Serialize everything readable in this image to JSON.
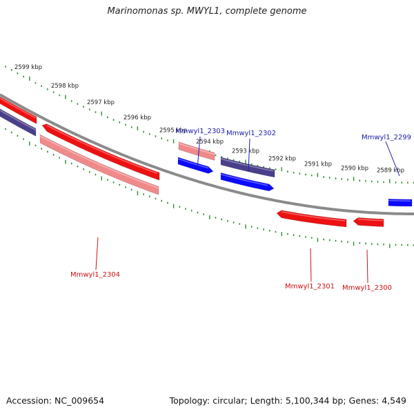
{
  "title": "Marinomonas sp. MWYL1, complete genome",
  "footer": {
    "accession": "Accession: NC_009654",
    "summary": "Topology: circular; Length: 5,100,344 bp; Genes: 4,549"
  },
  "colors": {
    "backbone": "#8a8a8a",
    "tick": "#2e8b2e",
    "forward_cds": "#0a0aff",
    "forward_gene": "#4a3f8a",
    "reverse_cds": "#ee1111",
    "reverse_gene": "#f08a8a",
    "forward_label": "#1a1aaa",
    "reverse_label": "#cc1111"
  },
  "ruler": {
    "labels": [
      "2599 kbp",
      "2598 kbp",
      "2597 kbp",
      "2596 kbp",
      "2595 kbp",
      "2594 kbp",
      "2593 kbp",
      "2592 kbp",
      "2591 kbp",
      "2590 kbp",
      "2589 kbp"
    ]
  },
  "genes": [
    {
      "name": "Mmwyl1_2303",
      "strand": "forward"
    },
    {
      "name": "Mmwyl1_2302",
      "strand": "forward"
    },
    {
      "name": "Mmwyl1_2299",
      "strand": "forward"
    },
    {
      "name": "Mmwyl1_2304",
      "strand": "reverse"
    },
    {
      "name": "Mmwyl1_2301",
      "strand": "reverse"
    },
    {
      "name": "Mmwyl1_2300",
      "strand": "reverse"
    }
  ]
}
